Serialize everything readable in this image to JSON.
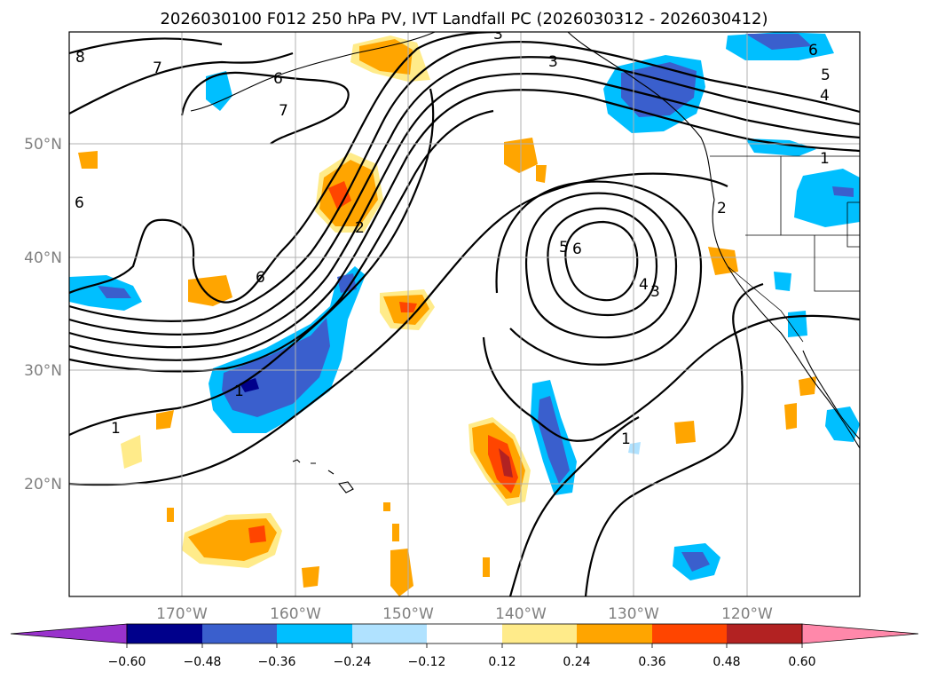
{
  "title": "2026030100 F012 250 hPa PV, IVT Landfall PC (2026030312 - 2026030412)",
  "lat_labels": [
    "50°N",
    "40°N",
    "30°N",
    "20°N"
  ],
  "lon_labels": [
    "170°W",
    "160°W",
    "150°W",
    "140°W",
    "130°W",
    "120°W"
  ],
  "colorbar": {
    "tick_labels": [
      "−0.60",
      "−0.48",
      "−0.36",
      "−0.24",
      "−0.12",
      "0.12",
      "0.24",
      "0.36",
      "0.48",
      "0.60"
    ],
    "colors": [
      "#9932cc",
      "#00008b",
      "#3a5fcd",
      "#00bfff",
      "#b0e2ff",
      "#ffffff",
      "#ffeb8a",
      "#ffa500",
      "#ff4500",
      "#b22222",
      "#ff88aa"
    ]
  },
  "contour_labels": [
    "8",
    "7",
    "6",
    "7",
    "3",
    "3",
    "6",
    "5",
    "4",
    "1",
    "6",
    "6",
    "2",
    "2",
    "6",
    "5",
    "4",
    "3",
    "1",
    "1",
    "1"
  ],
  "chart_data": {
    "type": "map",
    "title": "2026030100 F012 250 hPa PV, IVT Landfall PC (2026030312 - 2026030412)",
    "shaded_field": "IVT Landfall PC",
    "contour_field": "250 hPa PV",
    "lon_range": [
      180,
      110
    ],
    "lat_range": [
      10,
      60
    ],
    "lon_ticks": [
      170,
      160,
      150,
      140,
      130,
      120
    ],
    "lat_ticks": [
      50,
      40,
      30,
      20
    ],
    "color_levels": [
      -0.6,
      -0.48,
      -0.36,
      -0.24,
      -0.12,
      0.12,
      0.24,
      0.36,
      0.48,
      0.6
    ],
    "contour_levels": [
      1,
      2,
      3,
      4,
      5,
      6,
      7,
      8
    ]
  }
}
